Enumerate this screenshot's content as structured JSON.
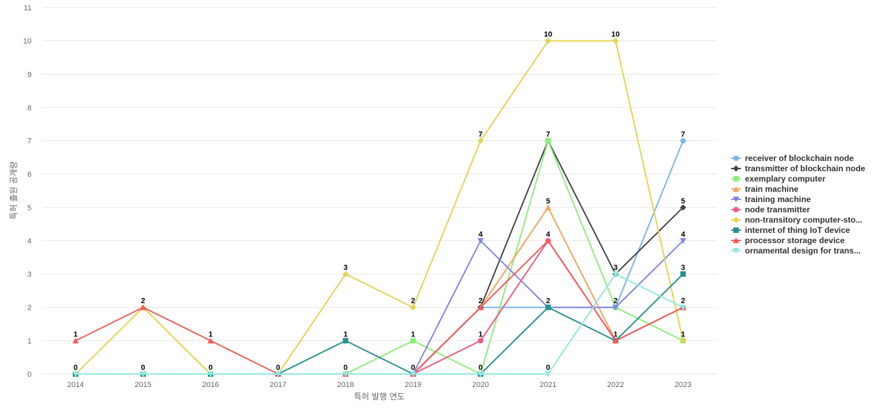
{
  "chart_data": {
    "type": "line",
    "title": "",
    "xlabel": "특허 발행 연도",
    "ylabel": "특허 출원 공개량",
    "ylim": [
      0,
      11
    ],
    "yticks": [
      0,
      1,
      2,
      3,
      4,
      5,
      6,
      7,
      8,
      9,
      10,
      11
    ],
    "categories": [
      "2014",
      "2015",
      "2016",
      "2017",
      "2018",
      "2019",
      "2020",
      "2021",
      "2022",
      "2023"
    ],
    "legend_position": "right",
    "series": [
      {
        "name": "receiver of blockchain node",
        "color": "#7cb5ec",
        "marker": "circle",
        "values": [
          0,
          0,
          0,
          0,
          0,
          0,
          2,
          2,
          2,
          7
        ]
      },
      {
        "name": "transmitter of blockchain node",
        "color": "#434348",
        "marker": "diamond",
        "values": [
          0,
          0,
          0,
          0,
          0,
          0,
          2,
          7,
          3,
          5
        ]
      },
      {
        "name": "exemplary computer",
        "color": "#90ed7d",
        "marker": "square",
        "values": [
          0,
          0,
          0,
          0,
          0,
          1,
          0,
          7,
          2,
          1
        ]
      },
      {
        "name": "train machine",
        "color": "#f7a35c",
        "marker": "triangle",
        "values": [
          0,
          0,
          0,
          0,
          0,
          0,
          2,
          5,
          1,
          2
        ]
      },
      {
        "name": "training machine",
        "color": "#8085e9",
        "marker": "triangle-down",
        "values": [
          0,
          0,
          0,
          0,
          0,
          0,
          4,
          2,
          2,
          4
        ]
      },
      {
        "name": "node transmitter",
        "color": "#f15c80",
        "marker": "circle",
        "values": [
          0,
          0,
          0,
          0,
          0,
          0,
          1,
          4,
          1,
          2
        ]
      },
      {
        "name": "non-transitory computer-sto...",
        "color": "#e4d354",
        "marker": "diamond",
        "values": [
          0,
          2,
          0,
          0,
          3,
          2,
          7,
          10,
          10,
          1
        ]
      },
      {
        "name": "internet of thing IoT device",
        "color": "#2b908f",
        "marker": "square",
        "values": [
          0,
          0,
          0,
          0,
          1,
          0,
          0,
          2,
          1,
          3
        ]
      },
      {
        "name": "processor storage device",
        "color": "#f45b5b",
        "marker": "triangle",
        "values": [
          1,
          2,
          1,
          0,
          0,
          0,
          2,
          4,
          1,
          2
        ]
      },
      {
        "name": "ornamental design for trans...",
        "color": "#91e8e1",
        "marker": "triangle-down",
        "values": [
          0,
          0,
          0,
          0,
          0,
          0,
          0,
          0,
          3,
          2
        ]
      }
    ],
    "data_labels": [
      {
        "category": "2014",
        "value": 1,
        "text": "1"
      },
      {
        "category": "2014",
        "value": 0,
        "text": "0"
      },
      {
        "category": "2015",
        "value": 2,
        "text": "2"
      },
      {
        "category": "2015",
        "value": 0,
        "text": "0"
      },
      {
        "category": "2016",
        "value": 1,
        "text": "1"
      },
      {
        "category": "2016",
        "value": 0,
        "text": "0"
      },
      {
        "category": "2017",
        "value": 0,
        "text": "0"
      },
      {
        "category": "2018",
        "value": 3,
        "text": "3"
      },
      {
        "category": "2018",
        "value": 1,
        "text": "1"
      },
      {
        "category": "2018",
        "value": 0,
        "text": "0"
      },
      {
        "category": "2019",
        "value": 2,
        "text": "2"
      },
      {
        "category": "2019",
        "value": 1,
        "text": "1"
      },
      {
        "category": "2019",
        "value": 0,
        "text": "0"
      },
      {
        "category": "2020",
        "value": 7,
        "text": "7"
      },
      {
        "category": "2020",
        "value": 4,
        "text": "4"
      },
      {
        "category": "2020",
        "value": 2,
        "text": "2"
      },
      {
        "category": "2020",
        "value": 1,
        "text": "1"
      },
      {
        "category": "2020",
        "value": 0,
        "text": "0"
      },
      {
        "category": "2021",
        "value": 10,
        "text": "10"
      },
      {
        "category": "2021",
        "value": 7,
        "text": "7"
      },
      {
        "category": "2021",
        "value": 5,
        "text": "5"
      },
      {
        "category": "2021",
        "value": 4,
        "text": "4"
      },
      {
        "category": "2021",
        "value": 2,
        "text": "2"
      },
      {
        "category": "2021",
        "value": 0,
        "text": "0"
      },
      {
        "category": "2022",
        "value": 10,
        "text": "10"
      },
      {
        "category": "2022",
        "value": 3,
        "text": "3"
      },
      {
        "category": "2022",
        "value": 2,
        "text": "2"
      },
      {
        "category": "2022",
        "value": 1,
        "text": "1"
      },
      {
        "category": "2023",
        "value": 7,
        "text": "7"
      },
      {
        "category": "2023",
        "value": 5,
        "text": "5"
      },
      {
        "category": "2023",
        "value": 4,
        "text": "4"
      },
      {
        "category": "2023",
        "value": 3,
        "text": "3"
      },
      {
        "category": "2023",
        "value": 2,
        "text": "2"
      },
      {
        "category": "2023",
        "value": 1,
        "text": "1"
      }
    ]
  }
}
